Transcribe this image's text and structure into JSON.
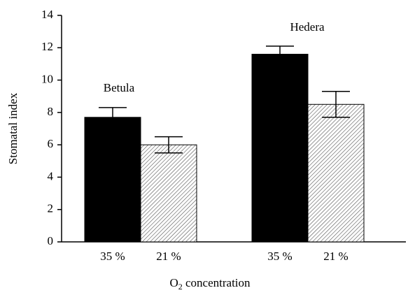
{
  "chart_data": {
    "type": "bar",
    "ylabel": "Stomatal index",
    "xlabel": [
      "O",
      "2",
      " concentration"
    ],
    "categories": [
      "35 %",
      "21 %",
      "35 %",
      "21 %"
    ],
    "values": [
      7.7,
      6.0,
      11.6,
      8.5
    ],
    "errors": [
      0.6,
      0.5,
      0.5,
      0.8
    ],
    "patterns": [
      "solid",
      "hatched",
      "solid",
      "hatched"
    ],
    "color": "#000000",
    "groups": [
      "Betula",
      "Hedera"
    ],
    "ylim": [
      0,
      14
    ],
    "yticks": [
      0,
      2,
      4,
      6,
      8,
      10,
      12,
      14
    ]
  }
}
